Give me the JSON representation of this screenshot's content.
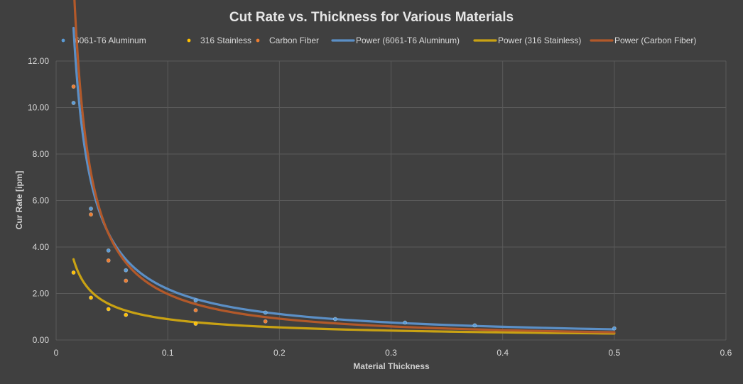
{
  "chart_data": {
    "type": "scatter",
    "title": "Cut Rate vs. Thickness for Various Materials",
    "xlabel": "Material Thickness",
    "ylabel": "Cur Rate [ipm]",
    "xlim": [
      0,
      0.6
    ],
    "ylim": [
      0,
      12
    ],
    "x_ticks": [
      "0",
      "0.1",
      "0.2",
      "0.3",
      "0.4",
      "0.5",
      "0.6"
    ],
    "y_ticks": [
      "0.00",
      "2.00",
      "4.00",
      "6.00",
      "8.00",
      "10.00",
      "12.00"
    ],
    "grid": true,
    "legend_position": "top",
    "series": [
      {
        "name": "6061-T6 Aluminum",
        "color": "#5b9bd5",
        "points": [
          [
            0.0156,
            10.2
          ],
          [
            0.0312,
            5.65
          ],
          [
            0.0469,
            3.85
          ],
          [
            0.0625,
            3.0
          ],
          [
            0.125,
            1.7
          ],
          [
            0.1875,
            1.18
          ],
          [
            0.25,
            0.9
          ],
          [
            0.3125,
            0.75
          ],
          [
            0.375,
            0.63
          ],
          [
            0.5,
            0.5
          ]
        ]
      },
      {
        "name": "316 Stainless",
        "color": "#ffc000",
        "points": [
          [
            0.0156,
            2.9
          ],
          [
            0.0312,
            1.82
          ],
          [
            0.0469,
            1.33
          ],
          [
            0.0625,
            1.08
          ],
          [
            0.125,
            0.7
          ]
        ]
      },
      {
        "name": "Carbon Fiber",
        "color": "#ed7d31",
        "points": [
          [
            0.0156,
            10.9
          ],
          [
            0.0312,
            5.4
          ],
          [
            0.0469,
            3.42
          ],
          [
            0.0625,
            2.55
          ],
          [
            0.125,
            1.28
          ],
          [
            0.1875,
            0.8
          ]
        ]
      }
    ],
    "trendlines": [
      {
        "name": "Power (6061-T6 Aluminum)",
        "color": "#5b8fc6",
        "type": "power",
        "a": 0.2326,
        "b": -0.9747,
        "x_range": [
          0.0156,
          0.5
        ]
      },
      {
        "name": "Power (316 Stainless)",
        "color": "#c9a213",
        "type": "power",
        "a": 0.1683,
        "b": -0.7275,
        "x_range": [
          0.0156,
          0.5
        ]
      },
      {
        "name": "Power (Carbon Fiber)",
        "color": "#b3592a",
        "type": "power",
        "a": 0.1538,
        "b": -1.109,
        "x_range": [
          0.0156,
          0.5
        ]
      }
    ]
  }
}
